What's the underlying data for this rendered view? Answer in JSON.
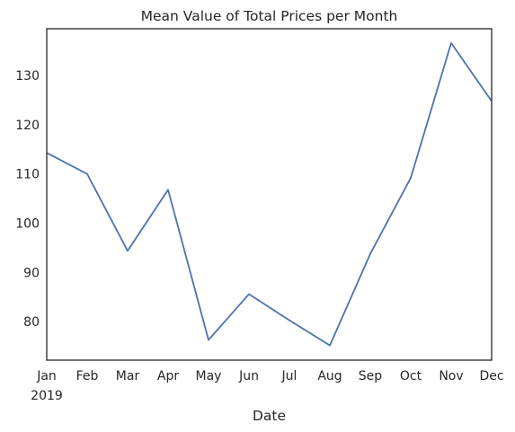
{
  "chart_data": {
    "type": "line",
    "title": "Mean Value of Total Prices per Month",
    "xlabel": "Date",
    "ylabel": "",
    "year_label": "2019",
    "categories": [
      "Jan",
      "Feb",
      "Mar",
      "Apr",
      "May",
      "Jun",
      "Jul",
      "Aug",
      "Sep",
      "Oct",
      "Nov",
      "Dec"
    ],
    "series": [
      {
        "values": [
          114.3,
          110.0,
          94.4,
          106.8,
          76.3,
          85.6,
          80.3,
          75.2,
          93.8,
          109.2,
          136.6,
          124.8
        ],
        "color": "#4c72b0"
      }
    ],
    "yticks": [
      80,
      90,
      100,
      110,
      120,
      130
    ],
    "ylim": [
      72.2,
      139.5
    ],
    "grid": false,
    "legend": false
  }
}
